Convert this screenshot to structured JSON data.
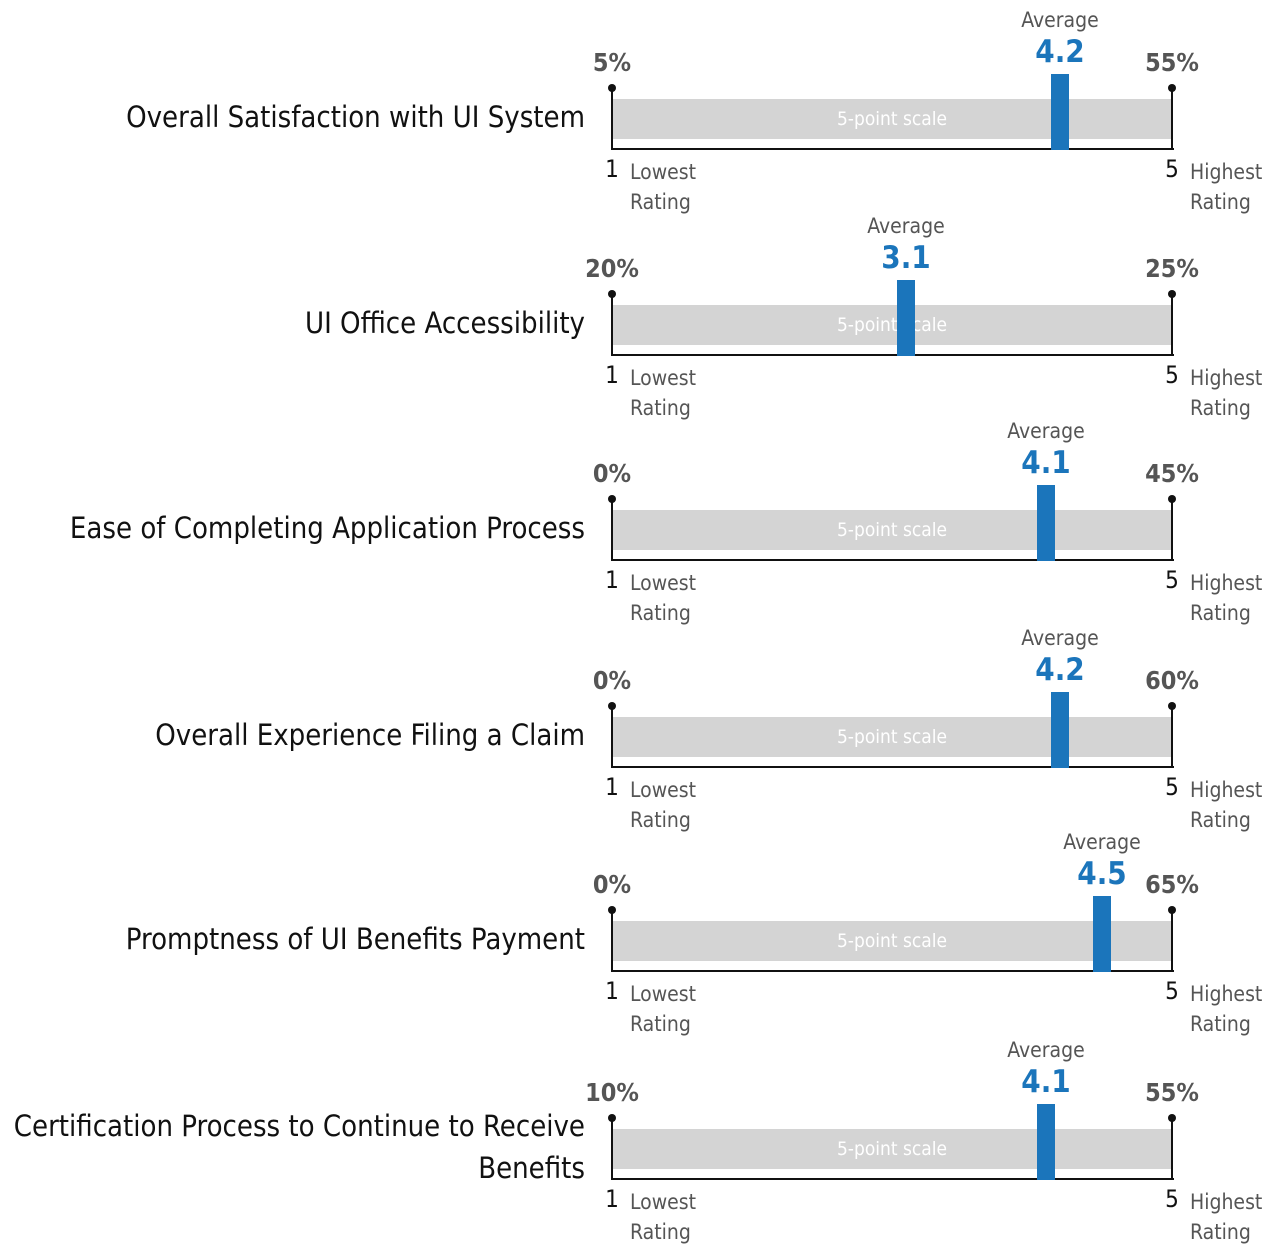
{
  "chart_data": [
    {
      "type": "scale",
      "title": "Overall Satisfaction with UI System",
      "value": 4.2,
      "value_title": "Average",
      "xlim": [
        1,
        5
      ],
      "xticks": [
        1,
        5
      ],
      "xtick_notes": [
        "Lowest Rating",
        "Highest Rating"
      ],
      "end_shares": [
        {
          "value": 5,
          "label": "5%"
        },
        {
          "value": 55,
          "label": "55%"
        }
      ],
      "scale_label": "5-point scale",
      "color": "#1b75bb"
    },
    {
      "type": "scale",
      "title": "UI Office Accessibility",
      "value": 3.1,
      "value_title": "Average",
      "xlim": [
        1,
        5
      ],
      "xticks": [
        1,
        5
      ],
      "xtick_notes": [
        "Lowest Rating",
        "Highest Rating"
      ],
      "end_shares": [
        {
          "value": 20,
          "label": "20%"
        },
        {
          "value": 25,
          "label": "25%"
        }
      ],
      "scale_label": "5-point scale",
      "color": "#1b75bb"
    },
    {
      "type": "scale",
      "title": "Ease of Completing Application Process",
      "value": 4.1,
      "value_title": "Average",
      "xlim": [
        1,
        5
      ],
      "xticks": [
        1,
        5
      ],
      "xtick_notes": [
        "Lowest Rating",
        "Highest Rating"
      ],
      "end_shares": [
        {
          "value": 0,
          "label": "0%"
        },
        {
          "value": 45,
          "label": "45%"
        }
      ],
      "scale_label": "5-point scale",
      "color": "#1b75bb"
    },
    {
      "type": "scale",
      "title": "Overall Experience Filing a Claim",
      "value": 4.2,
      "value_title": "Average",
      "xlim": [
        1,
        5
      ],
      "xticks": [
        1,
        5
      ],
      "xtick_notes": [
        "Lowest Rating",
        "Highest Rating"
      ],
      "end_shares": [
        {
          "value": 0,
          "label": "0%"
        },
        {
          "value": 60,
          "label": "60%"
        }
      ],
      "scale_label": "5-point scale",
      "color": "#1b75bb"
    },
    {
      "type": "scale",
      "title": "Promptness of UI Benefits Payment",
      "value": 4.5,
      "value_title": "Average",
      "xlim": [
        1,
        5
      ],
      "xticks": [
        1,
        5
      ],
      "xtick_notes": [
        "Lowest Rating",
        "Highest Rating"
      ],
      "end_shares": [
        {
          "value": 0,
          "label": "0%"
        },
        {
          "value": 65,
          "label": "65%"
        }
      ],
      "scale_label": "5-point scale",
      "color": "#1b75bb"
    },
    {
      "type": "scale",
      "title": "Certification Process to Continue to Receive Benefits",
      "value": 4.1,
      "value_title": "Average",
      "xlim": [
        1,
        5
      ],
      "xticks": [
        1,
        5
      ],
      "xtick_notes": [
        "Lowest Rating",
        "Highest Rating"
      ],
      "end_shares": [
        {
          "value": 10,
          "label": "10%"
        },
        {
          "value": 55,
          "label": "55%"
        }
      ],
      "scale_label": "5-point scale",
      "color": "#1b75bb"
    }
  ]
}
